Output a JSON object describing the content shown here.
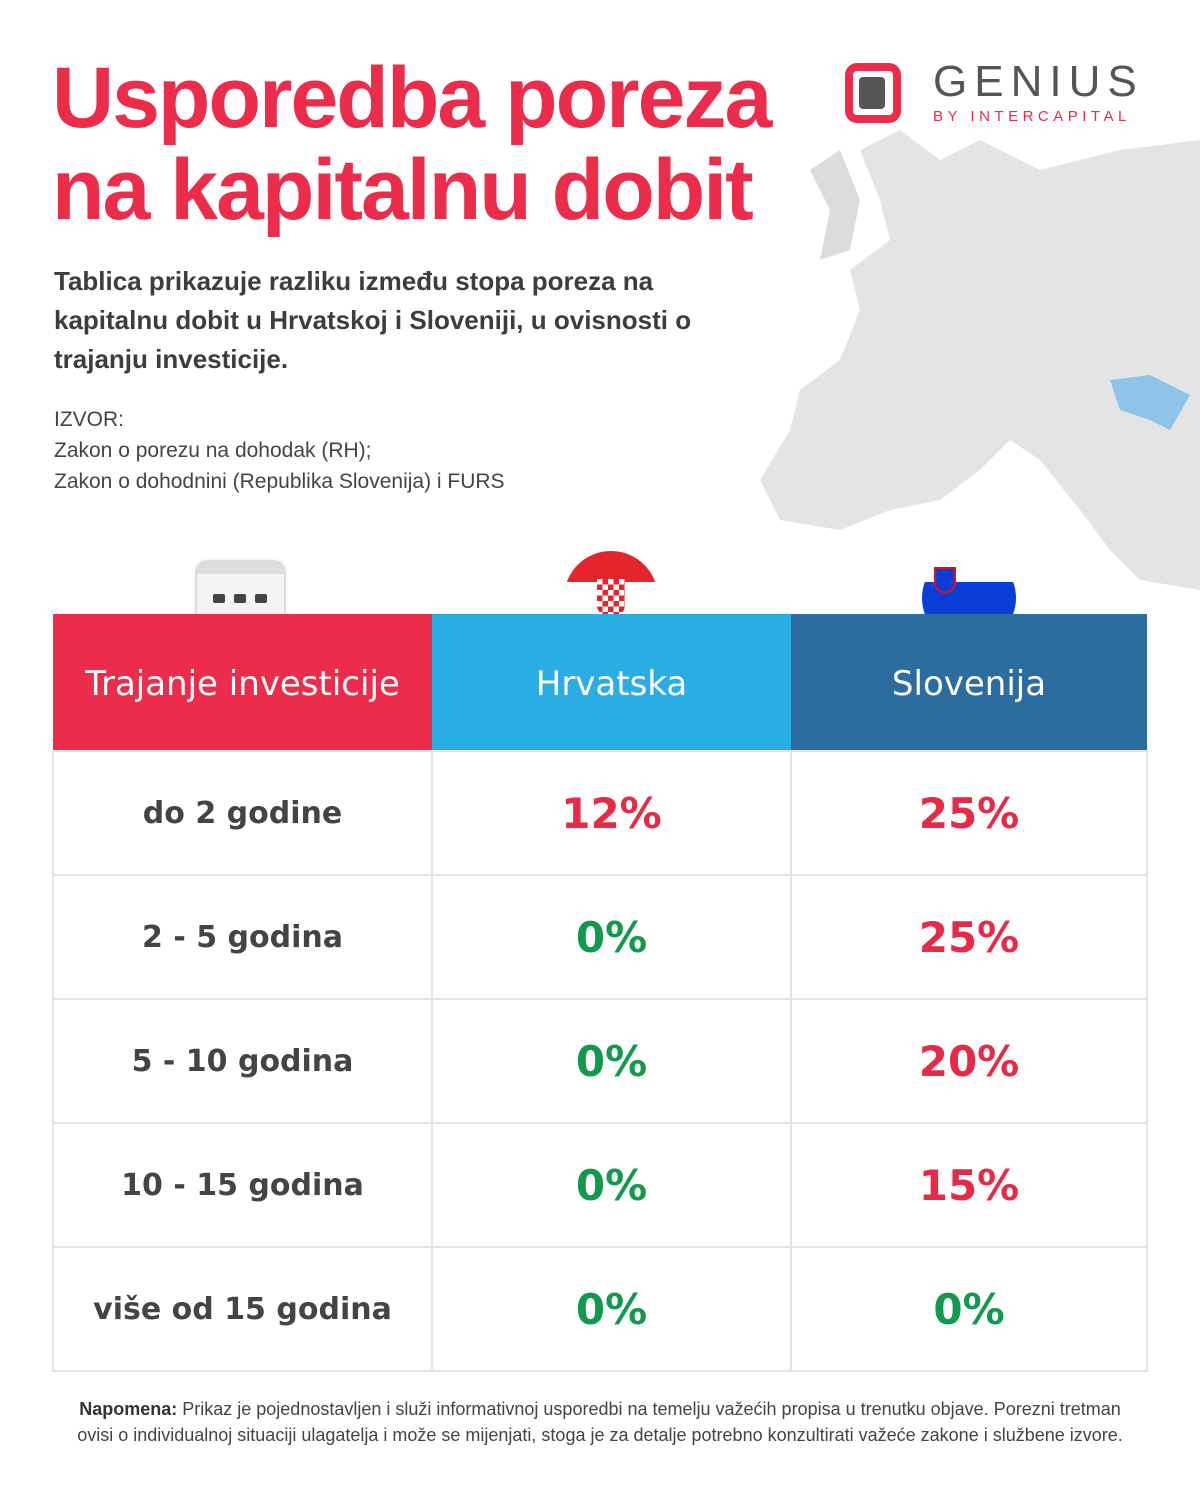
{
  "title_lines": [
    "Usporedba poreza",
    "na kapitalnu dobit"
  ],
  "subtitle": "Tablica prikazuje razliku između stopa poreza na kapitalnu dobit u Hrvatskoj i Sloveniji, u ovisnosti o trajanju investicije.",
  "source": {
    "label": "IZVOR:",
    "lines": [
      "Zakon o porezu na dohodak (RH);",
      "Zakon o dohodnini (Republika Slovenija) i FURS"
    ]
  },
  "logo": {
    "brand": "GENIUS",
    "sub": "BY INTERCAPITAL"
  },
  "colors": {
    "red": "#ec2c4b",
    "cyan": "#29ade3",
    "blue": "#2b6d9e",
    "green": "#12994e"
  },
  "table": {
    "headers": [
      "Trajanje investicije",
      "Hrvatska",
      "Slovenija"
    ],
    "rows": [
      {
        "duration": "do 2 godine",
        "hr": "12%",
        "si": "25%"
      },
      {
        "duration": "2 - 5 godina",
        "hr": "0%",
        "si": "25%"
      },
      {
        "duration": "5 - 10 godina",
        "hr": "0%",
        "si": "20%"
      },
      {
        "duration": "10 - 15 godina",
        "hr": "0%",
        "si": "15%"
      },
      {
        "duration": "više od 15 godina",
        "hr": "0%",
        "si": "0%"
      }
    ]
  },
  "note": {
    "label": "Napomena:",
    "text": " Prikaz je pojednostavljen i služi informativnoj usporedbi na temelju važećih propisa u trenutku objave. Porezni tretman ovisi o individualnoj situaciji ulagatelja i može se mijenjati, stoga je za detalje potrebno konzultirati važeće zakone i službene izvore."
  }
}
